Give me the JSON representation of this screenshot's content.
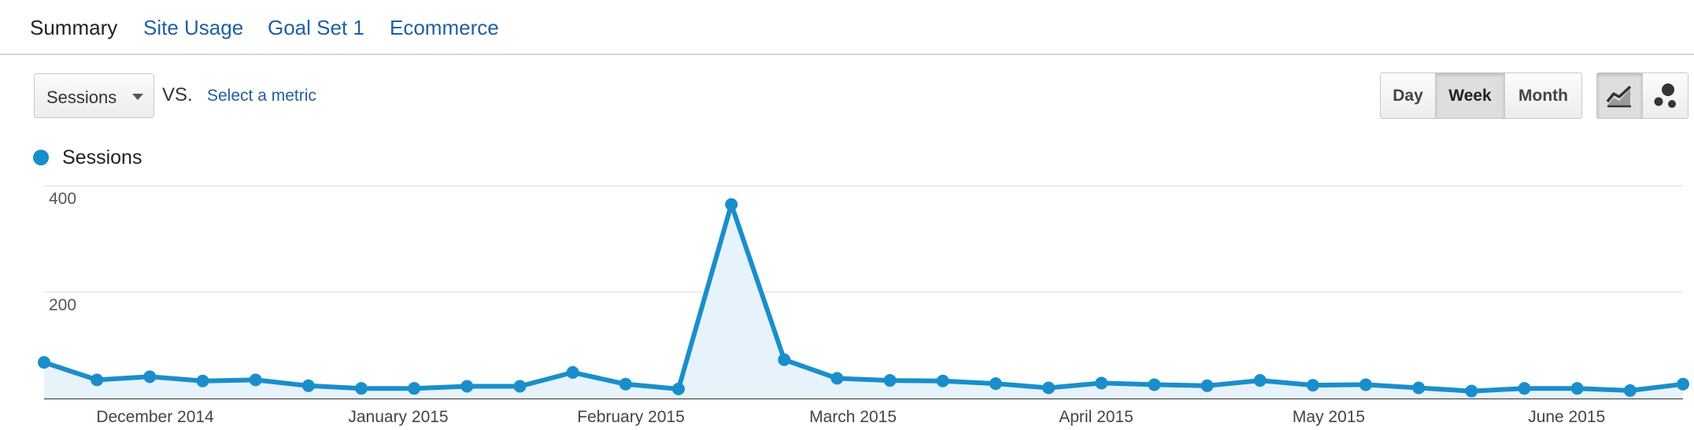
{
  "tabs": [
    {
      "label": "Summary",
      "active": true
    },
    {
      "label": "Site Usage",
      "active": false
    },
    {
      "label": "Goal Set 1",
      "active": false
    },
    {
      "label": "Ecommerce",
      "active": false
    }
  ],
  "controls": {
    "metric_value": "Sessions",
    "vs_label": "VS.",
    "select_metric_link": "Select a metric",
    "granularity": [
      {
        "label": "Day",
        "selected": false
      },
      {
        "label": "Week",
        "selected": true
      },
      {
        "label": "Month",
        "selected": false
      }
    ],
    "chart_type_buttons": [
      {
        "icon": "line-chart-icon",
        "selected": true
      },
      {
        "icon": "motion-chart-icon",
        "selected": false
      }
    ]
  },
  "colors": {
    "series": "#1a8ecb",
    "area_fill": "#e6f3fa",
    "link": "#1f5fa1"
  },
  "chart_data": {
    "type": "area",
    "series": [
      {
        "name": "Sessions",
        "values": [
          68,
          35,
          41,
          33,
          35,
          24,
          19,
          19,
          23,
          23,
          49,
          27,
          18,
          365,
          73,
          38,
          34,
          33,
          28,
          20,
          29,
          26,
          24,
          34,
          25,
          26,
          20,
          14,
          19,
          19,
          15,
          27
        ]
      }
    ],
    "y_ticks": [
      200,
      400
    ],
    "ylim": [
      0,
      400
    ],
    "x_tick_labels": [
      "December 2014",
      "January 2015",
      "February 2015",
      "March 2015",
      "April 2015",
      "May 2015",
      "June 2015"
    ],
    "grid": true,
    "legend": "top-left"
  }
}
